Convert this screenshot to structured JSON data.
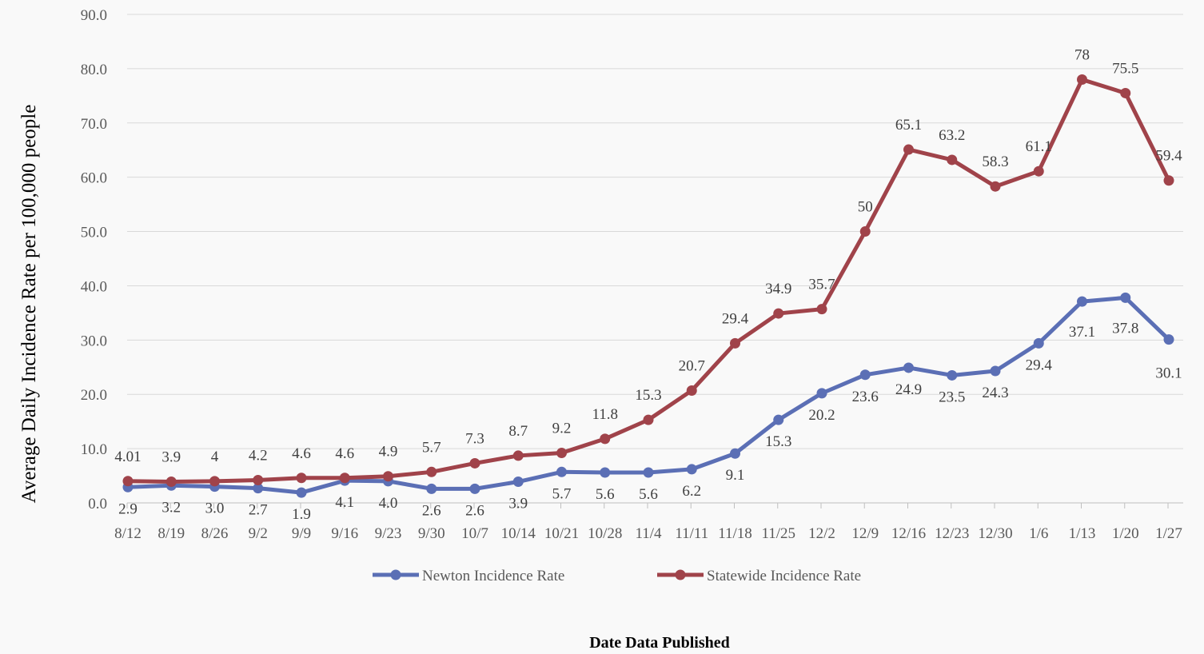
{
  "chart_data": {
    "type": "line",
    "title": "",
    "xlabel": "Date Data Published",
    "ylabel": "Average Daily Incidence Rate per 100,000 people",
    "ylim": [
      0,
      90
    ],
    "y_ticks": [
      "0.0",
      "10.0",
      "20.0",
      "30.0",
      "40.0",
      "50.0",
      "60.0",
      "70.0",
      "80.0",
      "90.0"
    ],
    "grid": "horizontal",
    "legend_position": "bottom",
    "categories": [
      "8/12",
      "8/19",
      "8/26",
      "9/2",
      "9/9",
      "9/16",
      "9/23",
      "9/30",
      "10/7",
      "10/14",
      "10/21",
      "10/28",
      "11/4",
      "11/11",
      "11/18",
      "11/25",
      "12/2",
      "12/9",
      "12/16",
      "12/23",
      "12/30",
      "1/6",
      "1/13",
      "1/20",
      "1/27"
    ],
    "series": [
      {
        "name": "Newton Incidence Rate",
        "color": "#5b6fb5",
        "values": [
          2.9,
          3.2,
          3.0,
          2.7,
          1.9,
          4.1,
          4.0,
          2.6,
          2.6,
          3.9,
          5.7,
          5.6,
          5.6,
          6.2,
          9.1,
          15.3,
          20.2,
          23.6,
          24.9,
          23.5,
          24.3,
          29.4,
          37.1,
          37.8,
          30.1
        ],
        "labels": [
          "2.9",
          "3.2",
          "3.0",
          "2.7",
          "1.9",
          "4.1",
          "4.0",
          "2.6",
          "2.6",
          "3.9",
          "5.7",
          "5.6",
          "5.6",
          "6.2",
          "9.1",
          "15.3",
          "20.2",
          "23.6",
          "24.9",
          "23.5",
          "24.3",
          "29.4",
          "37.1",
          "37.8",
          "30.1"
        ]
      },
      {
        "name": "Statewide Incidence Rate",
        "color": "#a0434a",
        "values": [
          4.01,
          3.9,
          4,
          4.2,
          4.6,
          4.6,
          4.9,
          5.7,
          7.3,
          8.7,
          9.2,
          11.8,
          15.3,
          20.7,
          29.4,
          34.9,
          35.7,
          50,
          65.1,
          63.2,
          58.3,
          61.1,
          78,
          75.5,
          59.4
        ],
        "labels": [
          "4.01",
          "3.9",
          "4",
          "4.2",
          "4.6",
          "4.6",
          "4.9",
          "5.7",
          "7.3",
          "8.7",
          "9.2",
          "11.8",
          "15.3",
          "20.7",
          "29.4",
          "34.9",
          "35.7",
          "50",
          "65.1",
          "63.2",
          "58.3",
          "61.1",
          "78",
          "75.5",
          "59.4"
        ]
      }
    ]
  }
}
